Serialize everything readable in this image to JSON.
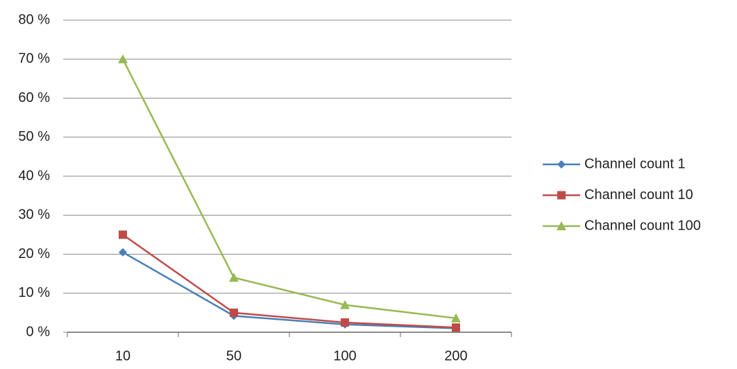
{
  "chart_data": {
    "type": "line",
    "categories": [
      "10",
      "50",
      "100",
      "200"
    ],
    "series": [
      {
        "name": "Channel count 1",
        "color": "#4a7ebb",
        "marker": "diamond",
        "values": [
          20.5,
          4.2,
          2.0,
          1.0
        ]
      },
      {
        "name": "Channel count 10",
        "color": "#be4b48",
        "marker": "square",
        "values": [
          25,
          5,
          2.5,
          1.2
        ]
      },
      {
        "name": "Channel count 100",
        "color": "#98b954",
        "marker": "triangle",
        "values": [
          70,
          14,
          7,
          3.6
        ]
      }
    ],
    "ylim": [
      0,
      80
    ],
    "yticks": [
      {
        "value": 0,
        "label": "0 %"
      },
      {
        "value": 10,
        "label": "10 %"
      },
      {
        "value": 20,
        "label": "20 %"
      },
      {
        "value": 30,
        "label": "30 %"
      },
      {
        "value": 40,
        "label": "40 %"
      },
      {
        "value": 50,
        "label": "50 %"
      },
      {
        "value": 60,
        "label": "60 %"
      },
      {
        "value": 70,
        "label": "70 %"
      },
      {
        "value": 80,
        "label": "80 %"
      }
    ],
    "grid": true,
    "legend": "right"
  }
}
